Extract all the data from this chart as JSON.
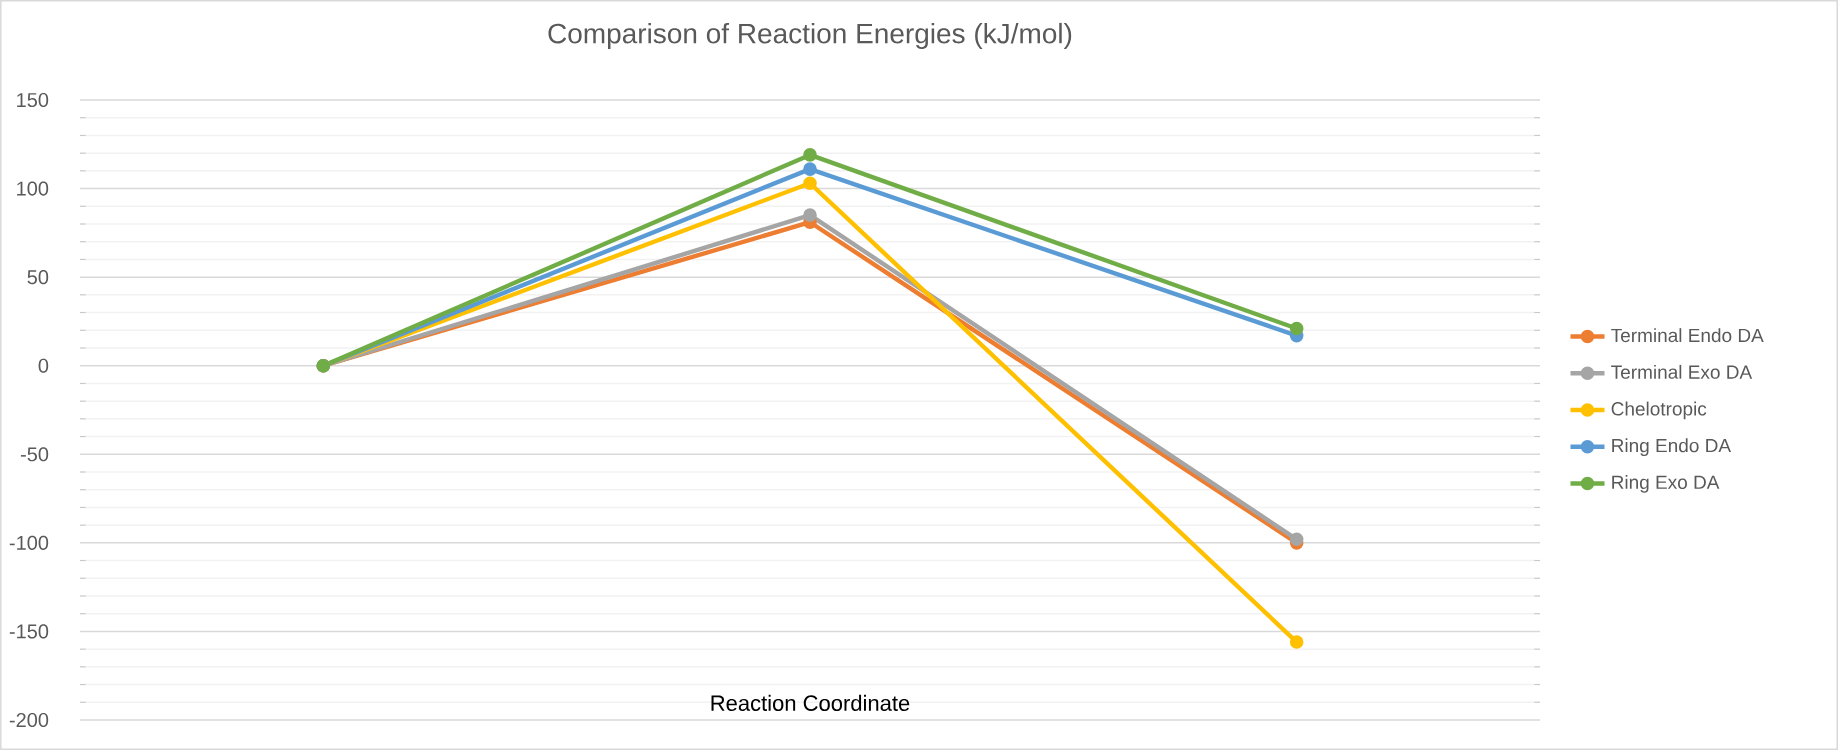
{
  "chart_data": {
    "type": "line",
    "title": "Comparison of Reaction Energies (kJ/mol)",
    "xlabel": "Reaction Coordinate",
    "categories": [
      null,
      null,
      null
    ],
    "series": [
      {
        "name": "Terminal Endo DA",
        "color": "#ed7d31",
        "values": [
          0,
          81,
          -100
        ]
      },
      {
        "name": "Terminal Exo DA",
        "color": "#a5a5a5",
        "values": [
          0,
          85,
          -98
        ]
      },
      {
        "name": "Chelotropic",
        "color": "#ffc000",
        "values": [
          0,
          103,
          -156
        ]
      },
      {
        "name": "Ring Endo DA",
        "color": "#5b9bd5",
        "values": [
          0,
          111,
          17
        ]
      },
      {
        "name": "Ring Exo DA",
        "color": "#70ad47",
        "values": [
          0,
          119,
          21
        ]
      }
    ],
    "ylim": [
      -200,
      150
    ],
    "yticks": [
      -200,
      -150,
      -100,
      -50,
      0,
      50,
      100,
      150
    ],
    "grid": "y",
    "legend": "right",
    "marker": "circle",
    "line_style": "solid",
    "tick_labels": "y"
  }
}
